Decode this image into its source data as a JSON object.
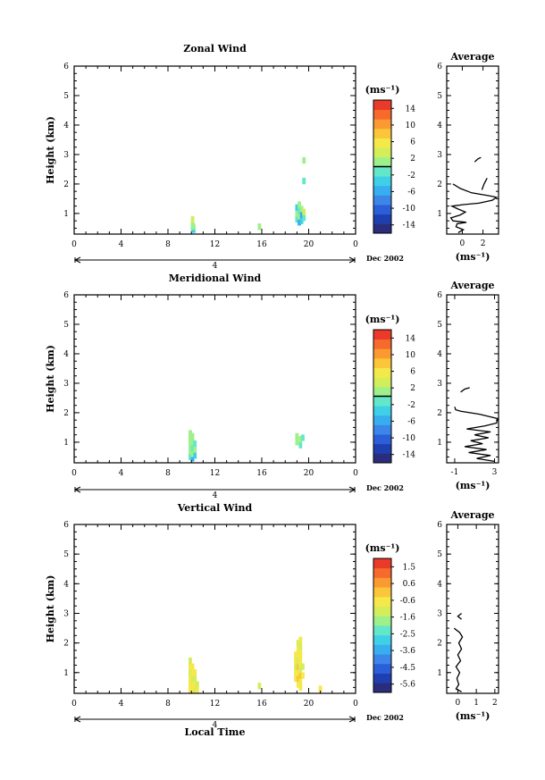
{
  "chart_data": [
    {
      "type": "heatmap",
      "title": "Zonal Wind",
      "ylabel": "Height (km)",
      "xlabel": "",
      "ylim": [
        0.3,
        6
      ],
      "xlim": [
        0,
        24
      ],
      "xticks": [
        "0",
        "4",
        "8",
        "12",
        "16",
        "20",
        "0"
      ],
      "yticks": [
        "1",
        "2",
        "3",
        "4",
        "5",
        "6"
      ],
      "day_label": "4",
      "date_label": "Dec 2002",
      "colorbar": {
        "unit": "(ms⁻¹)",
        "min": -16,
        "max": 16,
        "ticks": [
          "14",
          "10",
          "6",
          "2",
          "-2",
          "-6",
          "-10",
          "-14"
        ],
        "zero_line": 0
      },
      "cells": [
        {
          "x": 10.1,
          "y": 0.5,
          "v": -1
        },
        {
          "x": 10.1,
          "y": 0.6,
          "v": 0
        },
        {
          "x": 10.1,
          "y": 0.7,
          "v": 1
        },
        {
          "x": 10.1,
          "y": 0.8,
          "v": 3
        },
        {
          "x": 10.2,
          "y": 0.45,
          "v": -3
        },
        {
          "x": 10.2,
          "y": 0.55,
          "v": 2
        },
        {
          "x": 15.8,
          "y": 0.55,
          "v": 0
        },
        {
          "x": 19.0,
          "y": 0.8,
          "v": -2
        },
        {
          "x": 19.0,
          "y": 1.0,
          "v": 0
        },
        {
          "x": 19.0,
          "y": 1.2,
          "v": -4
        },
        {
          "x": 19.2,
          "y": 0.7,
          "v": -6
        },
        {
          "x": 19.2,
          "y": 0.9,
          "v": 1
        },
        {
          "x": 19.2,
          "y": 1.1,
          "v": -1
        },
        {
          "x": 19.2,
          "y": 1.3,
          "v": 2
        },
        {
          "x": 19.4,
          "y": 0.75,
          "v": -3
        },
        {
          "x": 19.4,
          "y": 0.95,
          "v": -5
        },
        {
          "x": 19.4,
          "y": 1.15,
          "v": 0
        },
        {
          "x": 19.6,
          "y": 0.85,
          "v": -2
        },
        {
          "x": 19.6,
          "y": 1.05,
          "v": 3
        },
        {
          "x": 19.6,
          "y": 2.8,
          "v": 0
        },
        {
          "x": 19.6,
          "y": 2.1,
          "v": -1
        }
      ],
      "profile": {
        "title": "Average",
        "xlabel": "(ms⁻¹)",
        "xlim": [
          -1.5,
          3.5
        ],
        "xticks": [
          "0",
          "2"
        ],
        "segments": [
          [
            [
              -0.4,
              0.35
            ],
            [
              0.1,
              0.45
            ],
            [
              -0.6,
              0.55
            ],
            [
              -0.5,
              0.65
            ],
            [
              0.4,
              0.7
            ],
            [
              -0.9,
              0.75
            ],
            [
              -1.1,
              0.85
            ],
            [
              -0.2,
              0.95
            ],
            [
              0.3,
              1.05
            ],
            [
              -0.4,
              1.15
            ],
            [
              -1.0,
              1.25
            ],
            [
              0.1,
              1.3
            ],
            [
              1.6,
              1.35
            ],
            [
              2.9,
              1.45
            ],
            [
              3.3,
              1.55
            ],
            [
              2.6,
              1.6
            ],
            [
              0.9,
              1.7
            ],
            [
              -0.2,
              1.85
            ],
            [
              -0.9,
              2.0
            ]
          ],
          [
            [
              1.9,
              1.8
            ],
            [
              2.1,
              2.0
            ],
            [
              2.4,
              2.2
            ]
          ],
          [
            [
              1.2,
              2.75
            ],
            [
              1.5,
              2.85
            ],
            [
              1.8,
              2.9
            ]
          ]
        ]
      }
    },
    {
      "type": "heatmap",
      "title": "Meridional Wind",
      "ylabel": "Height (km)",
      "xlabel": "",
      "ylim": [
        0.3,
        6
      ],
      "xlim": [
        0,
        24
      ],
      "xticks": [
        "0",
        "4",
        "8",
        "12",
        "16",
        "20",
        "0"
      ],
      "yticks": [
        "1",
        "2",
        "3",
        "4",
        "5",
        "6"
      ],
      "day_label": "4",
      "date_label": "Dec 2002",
      "colorbar": {
        "unit": "(ms⁻¹)",
        "min": -16,
        "max": 16,
        "ticks": [
          "14",
          "10",
          "6",
          "2",
          "-2",
          "-6",
          "-10",
          "-14"
        ],
        "zero_line": 0
      },
      "cells": [
        {
          "x": 9.9,
          "y": 0.5,
          "v": -2
        },
        {
          "x": 9.9,
          "y": 0.7,
          "v": 0
        },
        {
          "x": 9.9,
          "y": 0.9,
          "v": 1
        },
        {
          "x": 9.9,
          "y": 1.1,
          "v": 2
        },
        {
          "x": 9.9,
          "y": 1.3,
          "v": 1
        },
        {
          "x": 10.1,
          "y": 0.45,
          "v": -5
        },
        {
          "x": 10.1,
          "y": 0.6,
          "v": 0
        },
        {
          "x": 10.1,
          "y": 0.8,
          "v": -1
        },
        {
          "x": 10.1,
          "y": 1.0,
          "v": 2
        },
        {
          "x": 10.1,
          "y": 1.2,
          "v": 0
        },
        {
          "x": 10.3,
          "y": 0.55,
          "v": -3
        },
        {
          "x": 10.3,
          "y": 0.75,
          "v": 1
        },
        {
          "x": 10.3,
          "y": 0.95,
          "v": -2
        },
        {
          "x": 19.0,
          "y": 1.0,
          "v": 0
        },
        {
          "x": 19.0,
          "y": 1.2,
          "v": 1
        },
        {
          "x": 19.3,
          "y": 0.9,
          "v": -1
        },
        {
          "x": 19.3,
          "y": 1.1,
          "v": 2
        },
        {
          "x": 19.5,
          "y": 1.15,
          "v": -2
        }
      ],
      "profile": {
        "title": "Average",
        "xlabel": "(ms⁻¹)",
        "xlim": [
          -1.8,
          3.4
        ],
        "xticks": [
          "-1",
          "3"
        ],
        "segments": [
          [
            [
              3.0,
              0.35
            ],
            [
              1.2,
              0.45
            ],
            [
              2.6,
              0.55
            ],
            [
              0.4,
              0.65
            ],
            [
              2.2,
              0.75
            ],
            [
              0.0,
              0.85
            ],
            [
              1.8,
              0.95
            ],
            [
              0.6,
              1.05
            ],
            [
              2.4,
              1.15
            ],
            [
              1.0,
              1.25
            ],
            [
              2.6,
              1.35
            ],
            [
              0.2,
              1.45
            ],
            [
              2.0,
              1.55
            ],
            [
              3.2,
              1.65
            ],
            [
              3.3,
              1.8
            ],
            [
              1.5,
              1.95
            ],
            [
              -0.4,
              2.05
            ],
            [
              -0.9,
              2.1
            ],
            [
              -1.0,
              2.2
            ]
          ],
          [
            [
              -0.4,
              2.7
            ],
            [
              0.0,
              2.8
            ],
            [
              0.5,
              2.85
            ]
          ]
        ]
      }
    },
    {
      "type": "heatmap",
      "title": "Vertical Wind",
      "ylabel": "Height (km)",
      "xlabel": "Local Time",
      "ylim": [
        0.3,
        6
      ],
      "xlim": [
        0,
        24
      ],
      "xticks": [
        "0",
        "4",
        "8",
        "12",
        "16",
        "20",
        "0"
      ],
      "yticks": [
        "1",
        "2",
        "3",
        "4",
        "5",
        "6"
      ],
      "day_label": "4",
      "date_label": "Dec 2002",
      "colorbar": {
        "unit": "(ms⁻¹)",
        "min": -6,
        "max": 2,
        "ticks": [
          "1.5",
          "0.6",
          "-0.6",
          "-1.6",
          "-2.5",
          "-3.6",
          "-4.5",
          "-5.6"
        ]
      },
      "cells": [
        {
          "x": 9.9,
          "y": 0.4,
          "v": -0.4
        },
        {
          "x": 9.9,
          "y": 0.6,
          "v": -0.8
        },
        {
          "x": 9.9,
          "y": 0.8,
          "v": -0.5
        },
        {
          "x": 9.9,
          "y": 1.0,
          "v": -0.9
        },
        {
          "x": 9.9,
          "y": 1.2,
          "v": -0.7
        },
        {
          "x": 9.9,
          "y": 1.4,
          "v": -1.0
        },
        {
          "x": 10.1,
          "y": 0.4,
          "v": -0.6
        },
        {
          "x": 10.1,
          "y": 0.6,
          "v": -0.3
        },
        {
          "x": 10.1,
          "y": 0.8,
          "v": -0.9
        },
        {
          "x": 10.1,
          "y": 1.0,
          "v": -0.5
        },
        {
          "x": 10.1,
          "y": 1.2,
          "v": -0.8
        },
        {
          "x": 10.3,
          "y": 0.4,
          "v": -0.9
        },
        {
          "x": 10.3,
          "y": 0.6,
          "v": -0.6
        },
        {
          "x": 10.3,
          "y": 0.8,
          "v": -1.1
        },
        {
          "x": 10.3,
          "y": 1.0,
          "v": -0.4
        },
        {
          "x": 10.5,
          "y": 0.4,
          "v": -0.7
        },
        {
          "x": 10.5,
          "y": 0.6,
          "v": -1.0
        },
        {
          "x": 15.8,
          "y": 0.55,
          "v": -1.0
        },
        {
          "x": 18.9,
          "y": 0.8,
          "v": -0.6
        },
        {
          "x": 18.9,
          "y": 1.0,
          "v": -0.3
        },
        {
          "x": 18.9,
          "y": 1.2,
          "v": -0.9
        },
        {
          "x": 18.9,
          "y": 1.4,
          "v": -0.5
        },
        {
          "x": 18.9,
          "y": 1.6,
          "v": -0.8
        },
        {
          "x": 19.1,
          "y": 0.6,
          "v": -0.7
        },
        {
          "x": 19.1,
          "y": 0.8,
          "v": 0.2
        },
        {
          "x": 19.1,
          "y": 1.0,
          "v": -0.4
        },
        {
          "x": 19.1,
          "y": 1.2,
          "v": -0.2
        },
        {
          "x": 19.1,
          "y": 1.4,
          "v": -0.9
        },
        {
          "x": 19.1,
          "y": 1.6,
          "v": -0.6
        },
        {
          "x": 19.1,
          "y": 1.8,
          "v": -0.3
        },
        {
          "x": 19.1,
          "y": 2.0,
          "v": -1.0
        },
        {
          "x": 19.3,
          "y": 0.5,
          "v": -0.8
        },
        {
          "x": 19.3,
          "y": 0.7,
          "v": -0.5
        },
        {
          "x": 19.3,
          "y": 0.9,
          "v": -0.2
        },
        {
          "x": 19.3,
          "y": 1.1,
          "v": -0.9
        },
        {
          "x": 19.3,
          "y": 1.3,
          "v": -0.6
        },
        {
          "x": 19.3,
          "y": 1.5,
          "v": -0.4
        },
        {
          "x": 19.3,
          "y": 1.7,
          "v": -0.8
        },
        {
          "x": 19.3,
          "y": 1.9,
          "v": -1.1
        },
        {
          "x": 19.3,
          "y": 2.1,
          "v": -0.7
        },
        {
          "x": 19.5,
          "y": 0.9,
          "v": -0.6
        },
        {
          "x": 19.5,
          "y": 1.2,
          "v": -0.9
        },
        {
          "x": 21.0,
          "y": 0.45,
          "v": -0.8
        }
      ],
      "profile": {
        "title": "Average",
        "xlabel": "(ms⁻¹)",
        "xlim": [
          -0.6,
          2.2
        ],
        "xticks": [
          "0",
          "1",
          "2"
        ],
        "segments": [
          [
            [
              0.2,
              0.35
            ],
            [
              -0.1,
              0.45
            ],
            [
              0.05,
              0.6
            ],
            [
              -0.05,
              0.8
            ],
            [
              0.1,
              1.0
            ],
            [
              -0.1,
              1.2
            ],
            [
              0.15,
              1.4
            ],
            [
              0.0,
              1.6
            ],
            [
              0.2,
              1.8
            ],
            [
              0.05,
              2.0
            ],
            [
              0.25,
              2.2
            ],
            [
              0.1,
              2.35
            ],
            [
              -0.2,
              2.5
            ]
          ],
          [
            [
              0.2,
              2.8
            ],
            [
              0.0,
              2.9
            ],
            [
              0.2,
              3.0
            ]
          ]
        ]
      }
    }
  ]
}
